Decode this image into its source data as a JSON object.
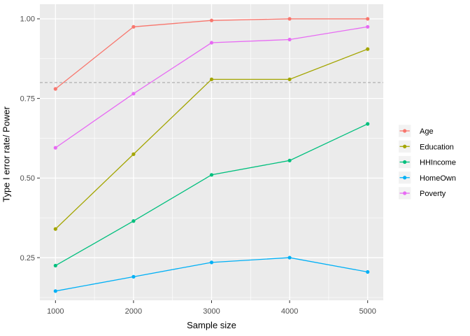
{
  "chart_data": {
    "type": "line",
    "title": "",
    "xlabel": "Sample size",
    "ylabel": "Type I error rate/ Power",
    "x": [
      1000,
      2000,
      3000,
      4000,
      5000
    ],
    "series": [
      {
        "name": "Age",
        "color": "#F8766D",
        "values": [
          0.78,
          0.975,
          0.995,
          1.0,
          1.0
        ]
      },
      {
        "name": "Education",
        "color": "#A3A500",
        "values": [
          0.34,
          0.575,
          0.81,
          0.81,
          0.905
        ]
      },
      {
        "name": "HHIncome",
        "color": "#00BF7D",
        "values": [
          0.225,
          0.365,
          0.51,
          0.555,
          0.67
        ]
      },
      {
        "name": "HomeOwn",
        "color": "#00B0F6",
        "values": [
          0.145,
          0.19,
          0.235,
          0.25,
          0.205
        ]
      },
      {
        "name": "Poverty",
        "color": "#E76BF3",
        "values": [
          0.595,
          0.765,
          0.925,
          0.935,
          0.975
        ]
      }
    ],
    "x_ticks": {
      "values": [
        1000,
        2000,
        3000,
        4000,
        5000
      ],
      "labels": [
        "1000",
        "2000",
        "3000",
        "4000",
        "5000"
      ]
    },
    "y_ticks": {
      "values": [
        0.25,
        0.5,
        0.75,
        1.0
      ],
      "labels": [
        "0.25",
        "0.50",
        "0.75",
        "1.00"
      ]
    },
    "minor_x": [
      1500,
      2500,
      3500,
      4500
    ],
    "minor_y": [
      0.125,
      0.375,
      0.625,
      0.875
    ],
    "xlim": [
      800,
      5200
    ],
    "ylim": [
      0.116,
      1.046
    ],
    "reference_line": {
      "y": 0.8,
      "style": "dashed",
      "color": "#A8A8A8"
    },
    "grid": true,
    "legend_position": "right",
    "style": {
      "panel_background": "#EBEBEB",
      "grid_color": "#FFFFFF",
      "legend_key_background": "#F2F2F2",
      "tick_color": "#333333",
      "tick_label_color": "#4D4D4D",
      "legend_label_color": "#000000"
    }
  }
}
